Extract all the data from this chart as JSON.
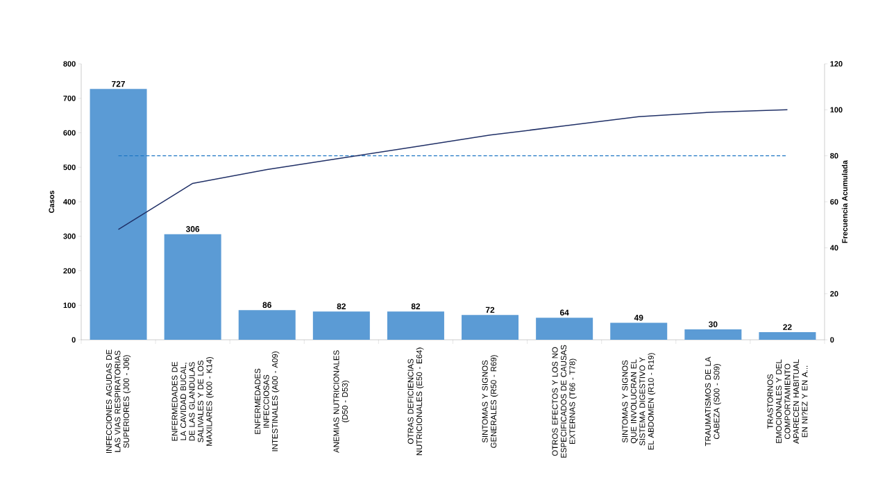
{
  "chart_data": {
    "type": "bar",
    "ylabel": "Casos",
    "y2label": "Frecuencia Acumulada",
    "categories": [
      "INFECCIONES AGUDAS DE LAS VIAS RESPIRATORIAS SUPERIORES (J00 - J06)",
      "ENFERMEDADES DE LA CAVIDAD BUCAL, DE LAS GLANDULAS SALIVALES Y DE LOS MAXILARES (K00 - K14)",
      "ENFERMEDADES INFECCIOSAS INTESTINALES (A00 - A09)",
      "ANEMIAS NUTRICIONALES (D50 - D53)",
      "OTRAS DEFICIENCIAS NUTRICIONALES (E50 - E64)",
      "SINTOMAS Y SIGNOS GENERALES (R50 - R69)",
      "OTROS EFECTOS Y LOS NO ESPECIFICADOS DE CAUSAS EXTERNAS (T66 - T78)",
      "SINTOMAS Y SIGNOS QUE INVOLUCRAN EL SISTEMA DIGESTIVO Y EL ABDOMEN (R10 - R19)",
      "TRAUMATISMOS DE LA CABEZA (S00 - S09)",
      "TRASTORNOS EMOCIONALES Y DEL COMPORTAMIENTO APARECEN HABITUAL EN NI?EZ Y EN A..."
    ],
    "series": [
      {
        "color": "#5b9bd5",
        "values": [
          727,
          306,
          86,
          82,
          82,
          72,
          64,
          49,
          30,
          22
        ],
        "value_labels": [
          "727",
          "306",
          "86",
          "82",
          "82",
          "72",
          "64",
          "49",
          "30",
          "22"
        ]
      },
      {
        "type": "line",
        "axis": "y2",
        "color": "#1f2f66",
        "values": [
          48,
          68,
          74,
          79,
          84,
          89,
          93,
          97,
          99,
          100
        ]
      }
    ],
    "ylim": [
      0,
      800
    ],
    "yticks": [
      0,
      100,
      200,
      300,
      400,
      500,
      600,
      700,
      800
    ],
    "y2lim": [
      0,
      120
    ],
    "y2ticks": [
      0,
      20,
      40,
      60,
      80,
      100,
      120
    ],
    "ref_lines": [
      {
        "axis": "y2",
        "value": 80,
        "color": "#1f77c4",
        "line_style": "dashed"
      }
    ],
    "grid": false,
    "marker": "none"
  }
}
